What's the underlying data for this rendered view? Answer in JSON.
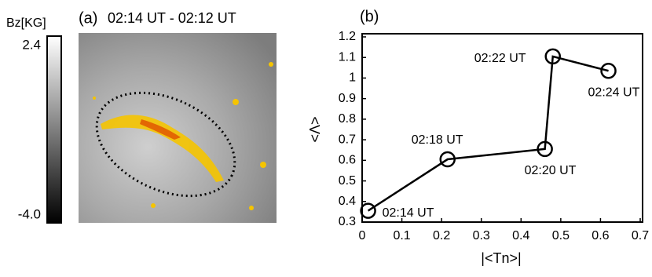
{
  "panel_a": {
    "label": "(a)",
    "title": "02:14 UT - 02:12 UT",
    "colorbar_label": "Bz[KG]",
    "colorbar_ticks": [
      "2.4",
      "-4.0"
    ]
  },
  "chart_data": {
    "type": "line",
    "label": "(b)",
    "x_label": "|<Tn>|",
    "y_label": "<Λ>",
    "x": [
      0.015,
      0.215,
      0.46,
      0.48,
      0.62
    ],
    "values": [
      0.355,
      0.605,
      0.655,
      1.105,
      1.035
    ],
    "point_labels": [
      "02:14 UT",
      "02:18 UT",
      "02:20 UT",
      "02:22 UT",
      "02:24 UT"
    ],
    "color": "#000000",
    "xlim": [
      0,
      0.7
    ],
    "ylim": [
      0.3,
      1.2
    ],
    "xticks": [
      0,
      0.1,
      0.2,
      0.3,
      0.4,
      0.5,
      0.6,
      0.7
    ],
    "yticks": [
      0.3,
      0.4,
      0.5,
      0.6,
      0.7,
      0.8,
      0.9,
      1,
      1.1,
      1.2
    ]
  }
}
